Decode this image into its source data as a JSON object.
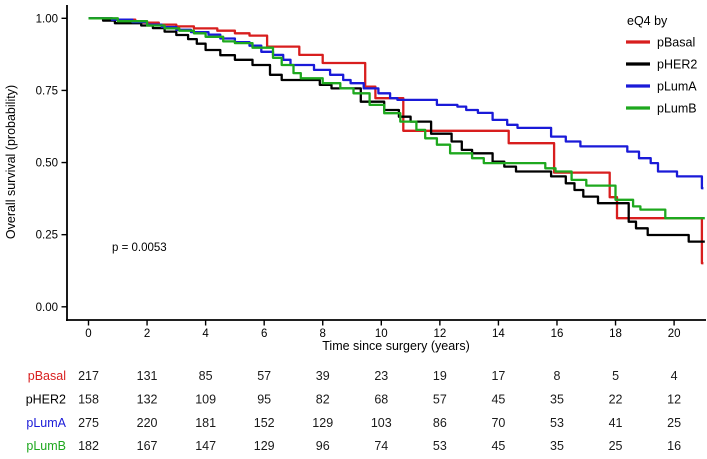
{
  "figure": {
    "p_value_label": "p = 0.0053",
    "background": "#ffffff",
    "axis_color": "#000000",
    "text_color": "#000000",
    "table_number_color": "#1a1a1a"
  },
  "colors": {
    "pBasal": "#d81e1e",
    "pHER2": "#000000",
    "pLumA": "#1a1ad8",
    "pLumB": "#1ea81e"
  },
  "legend": {
    "title": "eQ4 by",
    "entries": [
      {
        "label": "pBasal",
        "color_key": "pBasal"
      },
      {
        "label": "pHER2",
        "color_key": "pHER2"
      },
      {
        "label": "pLumA",
        "color_key": "pLumA"
      },
      {
        "label": "pLumB",
        "color_key": "pLumB"
      }
    ]
  },
  "chart_data": {
    "type": "line",
    "subtype": "kaplan-meier-step",
    "title": "",
    "xlabel": "Time since surgery (years)",
    "ylabel": "Overall survival (probability)",
    "xlim": [
      0,
      21.1
    ],
    "ylim": [
      0.0,
      1.0
    ],
    "grid": false,
    "legend_position": "top-right",
    "annotation": "p = 0.0053",
    "xticks": [
      {
        "v": 0,
        "label": "0"
      },
      {
        "v": 2,
        "label": "2"
      },
      {
        "v": 4,
        "label": "4"
      },
      {
        "v": 6,
        "label": "6"
      },
      {
        "v": 8,
        "label": "8"
      },
      {
        "v": 10,
        "label": "10"
      },
      {
        "v": 12,
        "label": "12"
      },
      {
        "v": 14,
        "label": "14"
      },
      {
        "v": 16,
        "label": "16"
      },
      {
        "v": 18,
        "label": "18"
      },
      {
        "v": 20,
        "label": "20"
      }
    ],
    "yticks": [
      {
        "v": 0.0,
        "label": "0.00"
      },
      {
        "v": 0.25,
        "label": "0.25"
      },
      {
        "v": 0.5,
        "label": "0.50"
      },
      {
        "v": 0.75,
        "label": "0.75"
      },
      {
        "v": 1.0,
        "label": "1.00"
      }
    ],
    "series": [
      {
        "name": "pBasal",
        "color_key": "pBasal",
        "end_t": 21.0,
        "steps": [
          [
            0,
            1.0
          ],
          [
            0.8,
            0.995
          ],
          [
            1.6,
            0.985
          ],
          [
            2.4,
            0.978
          ],
          [
            3.0,
            0.972
          ],
          [
            3.6,
            0.965
          ],
          [
            4.4,
            0.957
          ],
          [
            5.0,
            0.948
          ],
          [
            5.5,
            0.94
          ],
          [
            6.1,
            0.902
          ],
          [
            7.2,
            0.873
          ],
          [
            8.0,
            0.845
          ],
          [
            9.45,
            0.763
          ],
          [
            9.8,
            0.723
          ],
          [
            10.75,
            0.61
          ],
          [
            14.35,
            0.567
          ],
          [
            15.9,
            0.465
          ],
          [
            17.8,
            0.38
          ],
          [
            18.05,
            0.307
          ],
          [
            20.95,
            0.151
          ]
        ]
      },
      {
        "name": "pHER2",
        "color_key": "pHER2",
        "end_t": 21.05,
        "steps": [
          [
            0,
            1.0
          ],
          [
            0.5,
            0.992
          ],
          [
            0.9,
            0.983
          ],
          [
            1.8,
            0.975
          ],
          [
            2.2,
            0.966
          ],
          [
            2.6,
            0.954
          ],
          [
            3.0,
            0.942
          ],
          [
            3.4,
            0.928
          ],
          [
            3.7,
            0.912
          ],
          [
            4.0,
            0.89
          ],
          [
            4.5,
            0.872
          ],
          [
            5.0,
            0.856
          ],
          [
            5.6,
            0.838
          ],
          [
            6.2,
            0.804
          ],
          [
            6.6,
            0.786
          ],
          [
            7.9,
            0.769
          ],
          [
            8.3,
            0.757
          ],
          [
            9.3,
            0.711
          ],
          [
            10.1,
            0.682
          ],
          [
            10.6,
            0.659
          ],
          [
            11.0,
            0.642
          ],
          [
            11.7,
            0.6
          ],
          [
            12.4,
            0.573
          ],
          [
            12.75,
            0.544
          ],
          [
            13.1,
            0.532
          ],
          [
            13.8,
            0.503
          ],
          [
            14.2,
            0.486
          ],
          [
            14.6,
            0.469
          ],
          [
            15.8,
            0.452
          ],
          [
            16.3,
            0.428
          ],
          [
            16.6,
            0.405
          ],
          [
            16.9,
            0.382
          ],
          [
            17.4,
            0.359
          ],
          [
            18.45,
            0.295
          ],
          [
            18.7,
            0.272
          ],
          [
            19.1,
            0.249
          ],
          [
            20.5,
            0.226
          ]
        ]
      },
      {
        "name": "pLumA",
        "color_key": "pLumA",
        "end_t": 21.0,
        "steps": [
          [
            0,
            1.0
          ],
          [
            0.8,
            0.995
          ],
          [
            1.5,
            0.987
          ],
          [
            2.0,
            0.978
          ],
          [
            2.5,
            0.97
          ],
          [
            3.0,
            0.96
          ],
          [
            3.5,
            0.952
          ],
          [
            4.1,
            0.943
          ],
          [
            4.5,
            0.93
          ],
          [
            5.0,
            0.917
          ],
          [
            5.5,
            0.905
          ],
          [
            5.9,
            0.884
          ],
          [
            6.3,
            0.873
          ],
          [
            6.65,
            0.856
          ],
          [
            6.9,
            0.838
          ],
          [
            7.7,
            0.821
          ],
          [
            8.25,
            0.804
          ],
          [
            8.7,
            0.786
          ],
          [
            8.95,
            0.775
          ],
          [
            9.4,
            0.757
          ],
          [
            9.9,
            0.74
          ],
          [
            10.3,
            0.723
          ],
          [
            10.55,
            0.717
          ],
          [
            11.9,
            0.7
          ],
          [
            12.6,
            0.694
          ],
          [
            12.9,
            0.682
          ],
          [
            13.3,
            0.672
          ],
          [
            13.8,
            0.648
          ],
          [
            14.3,
            0.631
          ],
          [
            14.65,
            0.62
          ],
          [
            15.8,
            0.59
          ],
          [
            16.3,
            0.573
          ],
          [
            16.8,
            0.556
          ],
          [
            18.4,
            0.538
          ],
          [
            18.8,
            0.515
          ],
          [
            19.2,
            0.498
          ],
          [
            19.45,
            0.469
          ],
          [
            20.1,
            0.452
          ],
          [
            20.95,
            0.411
          ]
        ]
      },
      {
        "name": "pLumB",
        "color_key": "pLumB",
        "end_t": 21.05,
        "steps": [
          [
            0,
            1.0
          ],
          [
            1.0,
            0.99
          ],
          [
            2.0,
            0.975
          ],
          [
            2.6,
            0.965
          ],
          [
            3.1,
            0.957
          ],
          [
            3.6,
            0.948
          ],
          [
            4.0,
            0.936
          ],
          [
            4.6,
            0.92
          ],
          [
            5.0,
            0.914
          ],
          [
            5.6,
            0.898
          ],
          [
            6.3,
            0.863
          ],
          [
            6.6,
            0.838
          ],
          [
            7.0,
            0.81
          ],
          [
            7.25,
            0.792
          ],
          [
            8.0,
            0.775
          ],
          [
            8.6,
            0.757
          ],
          [
            9.05,
            0.74
          ],
          [
            9.6,
            0.7
          ],
          [
            10.1,
            0.671
          ],
          [
            10.65,
            0.642
          ],
          [
            11.2,
            0.613
          ],
          [
            11.5,
            0.584
          ],
          [
            11.9,
            0.562
          ],
          [
            12.35,
            0.532
          ],
          [
            13.1,
            0.515
          ],
          [
            13.5,
            0.498
          ],
          [
            15.6,
            0.48
          ],
          [
            15.95,
            0.469
          ],
          [
            16.5,
            0.44
          ],
          [
            17.0,
            0.42
          ],
          [
            18.0,
            0.371
          ],
          [
            18.6,
            0.348
          ],
          [
            18.85,
            0.337
          ],
          [
            19.7,
            0.307
          ]
        ]
      }
    ]
  },
  "risk_table": {
    "time_columns": [
      0,
      2,
      4,
      6,
      8,
      10,
      12,
      14,
      16,
      18,
      20
    ],
    "rows": [
      {
        "label": "pBasal",
        "color_key": "pBasal",
        "values": [
          217,
          131,
          85,
          57,
          39,
          23,
          19,
          17,
          8,
          5,
          4
        ]
      },
      {
        "label": "pHER2",
        "color_key": "pHER2",
        "values": [
          158,
          132,
          109,
          95,
          82,
          68,
          57,
          45,
          35,
          22,
          12
        ]
      },
      {
        "label": "pLumA",
        "color_key": "pLumA",
        "values": [
          275,
          220,
          181,
          152,
          129,
          103,
          86,
          70,
          53,
          41,
          25
        ]
      },
      {
        "label": "pLumB",
        "color_key": "pLumB",
        "values": [
          182,
          167,
          147,
          129,
          96,
          74,
          53,
          45,
          35,
          25,
          16
        ]
      }
    ]
  }
}
